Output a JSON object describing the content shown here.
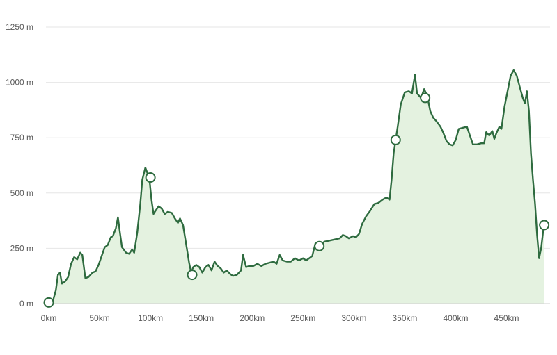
{
  "chart_data": {
    "type": "area",
    "title": "",
    "xlabel": "",
    "ylabel": "",
    "x_unit": "km",
    "y_unit": "m",
    "xlim": [
      0,
      490
    ],
    "ylim": [
      0,
      1250
    ],
    "grid": true,
    "x_ticks": [
      {
        "value": 0,
        "label": "0km"
      },
      {
        "value": 50,
        "label": "50km"
      },
      {
        "value": 100,
        "label": "100km"
      },
      {
        "value": 150,
        "label": "150km"
      },
      {
        "value": 200,
        "label": "200km"
      },
      {
        "value": 250,
        "label": "250km"
      },
      {
        "value": 300,
        "label": "300km"
      },
      {
        "value": 350,
        "label": "350km"
      },
      {
        "value": 400,
        "label": "400km"
      },
      {
        "value": 450,
        "label": "450km"
      }
    ],
    "y_ticks": [
      {
        "value": 0,
        "label": "0 m"
      },
      {
        "value": 250,
        "label": "250 m"
      },
      {
        "value": 500,
        "label": "500 m"
      },
      {
        "value": 750,
        "label": "750 m"
      },
      {
        "value": 1000,
        "label": "1000 m"
      },
      {
        "value": 1250,
        "label": "1250 m"
      }
    ],
    "colors": {
      "line": "#2e6b3f",
      "fill": "#e4f2e0",
      "grid": "#e6e6e6"
    },
    "profile": [
      [
        0,
        5
      ],
      [
        4,
        10
      ],
      [
        7,
        60
      ],
      [
        9,
        130
      ],
      [
        11,
        140
      ],
      [
        13,
        90
      ],
      [
        16,
        100
      ],
      [
        19,
        120
      ],
      [
        22,
        180
      ],
      [
        25,
        210
      ],
      [
        28,
        200
      ],
      [
        31,
        230
      ],
      [
        33,
        220
      ],
      [
        36,
        115
      ],
      [
        39,
        120
      ],
      [
        43,
        140
      ],
      [
        46,
        145
      ],
      [
        49,
        175
      ],
      [
        52,
        215
      ],
      [
        55,
        255
      ],
      [
        58,
        265
      ],
      [
        61,
        300
      ],
      [
        63,
        305
      ],
      [
        66,
        340
      ],
      [
        68,
        390
      ],
      [
        70,
        320
      ],
      [
        72,
        255
      ],
      [
        76,
        230
      ],
      [
        79,
        225
      ],
      [
        82,
        245
      ],
      [
        84,
        230
      ],
      [
        87,
        320
      ],
      [
        90,
        450
      ],
      [
        92,
        560
      ],
      [
        95,
        615
      ],
      [
        97,
        590
      ],
      [
        99,
        560
      ],
      [
        101,
        470
      ],
      [
        103,
        405
      ],
      [
        105,
        420
      ],
      [
        108,
        440
      ],
      [
        111,
        430
      ],
      [
        114,
        405
      ],
      [
        117,
        415
      ],
      [
        121,
        410
      ],
      [
        124,
        385
      ],
      [
        127,
        365
      ],
      [
        129,
        385
      ],
      [
        132,
        355
      ],
      [
        135,
        270
      ],
      [
        138,
        185
      ],
      [
        140,
        140
      ],
      [
        142,
        165
      ],
      [
        145,
        175
      ],
      [
        148,
        165
      ],
      [
        151,
        140
      ],
      [
        154,
        165
      ],
      [
        157,
        175
      ],
      [
        160,
        150
      ],
      [
        163,
        190
      ],
      [
        166,
        170
      ],
      [
        169,
        160
      ],
      [
        172,
        140
      ],
      [
        175,
        150
      ],
      [
        178,
        135
      ],
      [
        181,
        125
      ],
      [
        185,
        130
      ],
      [
        189,
        150
      ],
      [
        191,
        220
      ],
      [
        194,
        165
      ],
      [
        197,
        170
      ],
      [
        201,
        170
      ],
      [
        205,
        180
      ],
      [
        209,
        170
      ],
      [
        213,
        180
      ],
      [
        217,
        185
      ],
      [
        221,
        190
      ],
      [
        224,
        180
      ],
      [
        227,
        220
      ],
      [
        230,
        195
      ],
      [
        234,
        190
      ],
      [
        238,
        190
      ],
      [
        242,
        205
      ],
      [
        246,
        195
      ],
      [
        250,
        205
      ],
      [
        253,
        195
      ],
      [
        256,
        205
      ],
      [
        259,
        215
      ],
      [
        262,
        270
      ],
      [
        265,
        255
      ],
      [
        268,
        270
      ],
      [
        271,
        280
      ],
      [
        276,
        285
      ],
      [
        281,
        290
      ],
      [
        286,
        295
      ],
      [
        289,
        310
      ],
      [
        292,
        305
      ],
      [
        295,
        295
      ],
      [
        299,
        305
      ],
      [
        302,
        300
      ],
      [
        305,
        315
      ],
      [
        308,
        360
      ],
      [
        312,
        395
      ],
      [
        316,
        420
      ],
      [
        320,
        450
      ],
      [
        324,
        455
      ],
      [
        328,
        470
      ],
      [
        332,
        480
      ],
      [
        335,
        470
      ],
      [
        337,
        560
      ],
      [
        339,
        680
      ],
      [
        341,
        740
      ],
      [
        343,
        800
      ],
      [
        346,
        900
      ],
      [
        350,
        955
      ],
      [
        354,
        960
      ],
      [
        357,
        950
      ],
      [
        360,
        1035
      ],
      [
        362,
        950
      ],
      [
        366,
        930
      ],
      [
        369,
        970
      ],
      [
        372,
        940
      ],
      [
        375,
        870
      ],
      [
        378,
        840
      ],
      [
        381,
        825
      ],
      [
        385,
        800
      ],
      [
        388,
        770
      ],
      [
        391,
        735
      ],
      [
        394,
        720
      ],
      [
        397,
        715
      ],
      [
        400,
        740
      ],
      [
        403,
        790
      ],
      [
        407,
        795
      ],
      [
        411,
        800
      ],
      [
        414,
        760
      ],
      [
        417,
        720
      ],
      [
        421,
        720
      ],
      [
        425,
        725
      ],
      [
        428,
        725
      ],
      [
        430,
        775
      ],
      [
        433,
        760
      ],
      [
        436,
        780
      ],
      [
        438,
        745
      ],
      [
        440,
        770
      ],
      [
        443,
        800
      ],
      [
        445,
        790
      ],
      [
        448,
        890
      ],
      [
        451,
        960
      ],
      [
        454,
        1030
      ],
      [
        457,
        1055
      ],
      [
        460,
        1030
      ],
      [
        463,
        980
      ],
      [
        466,
        930
      ],
      [
        468,
        905
      ],
      [
        470,
        960
      ],
      [
        472,
        870
      ],
      [
        474,
        680
      ],
      [
        476,
        560
      ],
      [
        478,
        450
      ],
      [
        480,
        310
      ],
      [
        482,
        205
      ],
      [
        484,
        250
      ],
      [
        486,
        330
      ],
      [
        487,
        350
      ]
    ],
    "waypoints": [
      {
        "x": 0,
        "y": 5
      },
      {
        "x": 100,
        "y": 570
      },
      {
        "x": 141,
        "y": 130
      },
      {
        "x": 266,
        "y": 260
      },
      {
        "x": 341,
        "y": 740
      },
      {
        "x": 370,
        "y": 930
      },
      {
        "x": 487,
        "y": 355
      }
    ]
  }
}
